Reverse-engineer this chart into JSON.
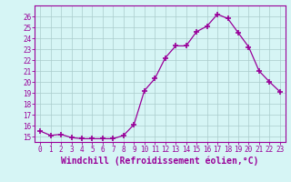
{
  "x": [
    0,
    1,
    2,
    3,
    4,
    5,
    6,
    7,
    8,
    9,
    10,
    11,
    12,
    13,
    14,
    15,
    16,
    17,
    18,
    19,
    20,
    21,
    22,
    23
  ],
  "y": [
    15.5,
    15.1,
    15.2,
    14.9,
    14.8,
    14.8,
    14.8,
    14.8,
    15.1,
    16.1,
    19.2,
    20.3,
    22.2,
    23.3,
    23.3,
    24.6,
    25.1,
    26.2,
    25.8,
    24.5,
    23.2,
    21.0,
    20.0,
    19.1
  ],
  "line_color": "#990099",
  "marker": "+",
  "marker_size": 4,
  "marker_linewidth": 1.2,
  "bg_color": "#d6f5f5",
  "grid_color": "#aacccc",
  "xlabel": "Windchill (Refroidissement éolien,°C)",
  "ylim": [
    14.5,
    27.0
  ],
  "xlim": [
    -0.5,
    23.5
  ],
  "xticks": [
    0,
    1,
    2,
    3,
    4,
    5,
    6,
    7,
    8,
    9,
    10,
    11,
    12,
    13,
    14,
    15,
    16,
    17,
    18,
    19,
    20,
    21,
    22,
    23
  ],
  "yticks": [
    15,
    16,
    17,
    18,
    19,
    20,
    21,
    22,
    23,
    24,
    25,
    26
  ],
  "tick_label_color": "#990099",
  "tick_label_fontsize": 5.5,
  "xlabel_fontsize": 7,
  "xlabel_color": "#990099",
  "spine_color": "#990099",
  "line_width": 0.9
}
